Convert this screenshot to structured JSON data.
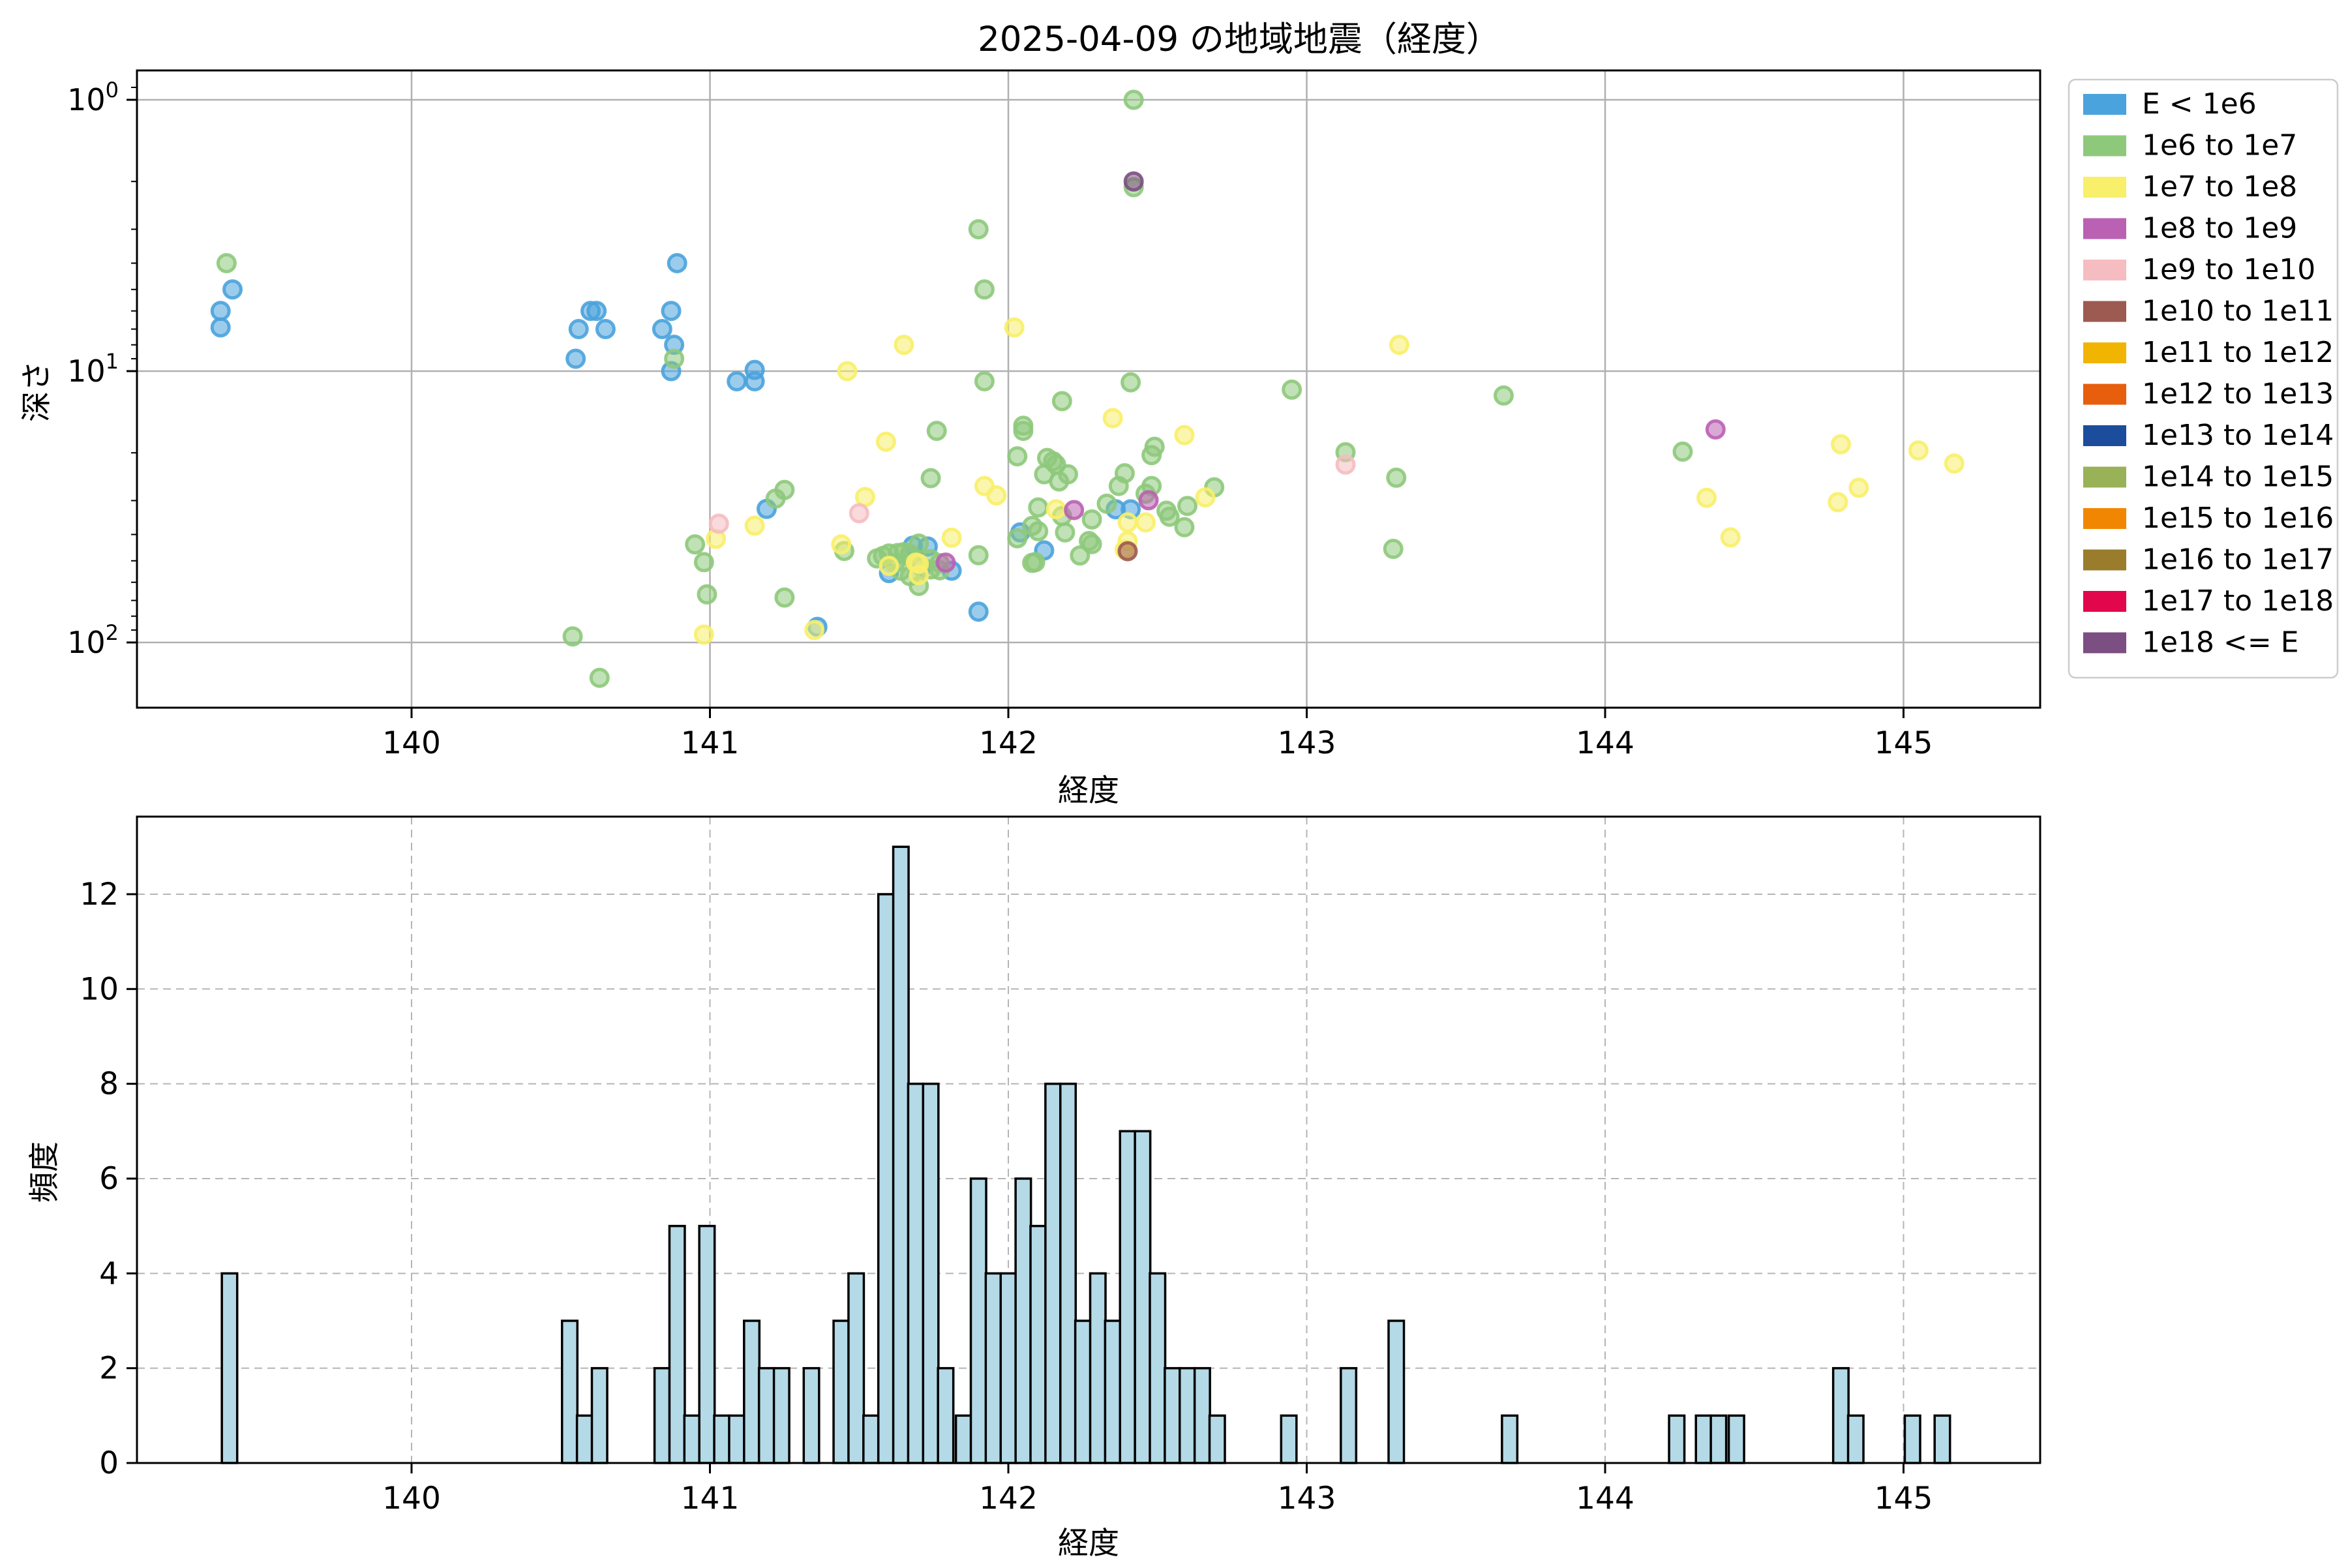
{
  "figure": {
    "title": "2025-04-09 の地域地震（経度）",
    "background": "#ffffff"
  },
  "chart_data": [
    {
      "type": "scatter",
      "title": "2025-04-09 の地域地震（経度）",
      "xlabel": "経度",
      "ylabel": "深さ",
      "x_axis": {
        "min": 139.08,
        "max": 145.46,
        "ticks": [
          140,
          141,
          142,
          143,
          144,
          145
        ]
      },
      "y_axis": {
        "scale": "log",
        "inverted": true,
        "min_value": 0.81,
        "max_value": 175,
        "ticks": [
          {
            "value": 1,
            "base": "10",
            "exp": "0"
          },
          {
            "value": 10,
            "base": "10",
            "exp": "1"
          },
          {
            "value": 100,
            "base": "10",
            "exp": "2"
          }
        ]
      },
      "grid": {
        "style": "solid",
        "color": "#b0b0b0"
      },
      "legend_position": "upper right outside",
      "series": [
        {
          "name": "E < 1e6",
          "color": "#4aa3dc",
          "points": [
            [
              139.4,
              5.0
            ],
            [
              139.36,
              6.0
            ],
            [
              139.36,
              6.9
            ],
            [
              140.55,
              9.0
            ],
            [
              140.56,
              7.0
            ],
            [
              140.62,
              6.0
            ],
            [
              140.65,
              7.0
            ],
            [
              140.6,
              6.0
            ],
            [
              140.84,
              7.0
            ],
            [
              140.87,
              6.0
            ],
            [
              140.88,
              8.0
            ],
            [
              140.87,
              10.0
            ],
            [
              140.89,
              4.0
            ],
            [
              141.09,
              10.9
            ],
            [
              141.15,
              10.9
            ],
            [
              141.15,
              9.9
            ],
            [
              141.19,
              32.2
            ],
            [
              141.36,
              87.6
            ],
            [
              141.6,
              55.5
            ],
            [
              141.67,
              47.5
            ],
            [
              141.68,
              44.0
            ],
            [
              141.71,
              52.8
            ],
            [
              141.73,
              44.3
            ],
            [
              141.81,
              54.4
            ],
            [
              141.9,
              77.0
            ],
            [
              142.04,
              39.3
            ],
            [
              142.12,
              45.8
            ],
            [
              142.36,
              32.3
            ],
            [
              142.41,
              32.3
            ]
          ]
        },
        {
          "name": "1e6 to 1e7",
          "color": "#8ec97b",
          "points": [
            [
              139.38,
              4.0
            ],
            [
              140.54,
              95.0
            ],
            [
              140.63,
              135.0
            ],
            [
              140.88,
              9.0
            ],
            [
              140.95,
              43.5
            ],
            [
              140.98,
              50.6
            ],
            [
              140.99,
              66.5
            ],
            [
              141.22,
              29.5
            ],
            [
              141.25,
              27.4
            ],
            [
              141.25,
              68.3
            ],
            [
              141.45,
              46.0
            ],
            [
              141.56,
              49.0
            ],
            [
              141.58,
              48.0
            ],
            [
              141.6,
              47.0
            ],
            [
              141.62,
              51.0
            ],
            [
              141.63,
              46.8
            ],
            [
              141.64,
              54.4
            ],
            [
              141.65,
              46.5
            ],
            [
              141.67,
              47.3
            ],
            [
              141.67,
              56.9
            ],
            [
              141.7,
              43.2
            ],
            [
              141.7,
              61.9
            ],
            [
              141.74,
              49.3
            ],
            [
              141.74,
              53.8
            ],
            [
              141.74,
              24.8
            ],
            [
              141.76,
              16.6
            ],
            [
              141.77,
              51.0
            ],
            [
              141.77,
              54.2
            ],
            [
              141.9,
              3.0
            ],
            [
              141.92,
              5.0
            ],
            [
              141.9,
              47.7
            ],
            [
              141.92,
              10.9
            ],
            [
              142.03,
              41.3
            ],
            [
              142.03,
              20.6
            ],
            [
              142.05,
              15.9
            ],
            [
              142.05,
              16.6
            ],
            [
              142.08,
              50.9
            ],
            [
              142.08,
              37.2
            ],
            [
              142.09,
              50.6
            ],
            [
              142.1,
              31.8
            ],
            [
              142.1,
              38.9
            ],
            [
              142.12,
              24.0
            ],
            [
              142.13,
              20.9
            ],
            [
              142.15,
              21.5
            ],
            [
              142.16,
              22.1
            ],
            [
              142.17,
              25.5
            ],
            [
              142.18,
              12.9
            ],
            [
              142.18,
              34.2
            ],
            [
              142.19,
              39.3
            ],
            [
              142.2,
              24.0
            ],
            [
              142.24,
              47.8
            ],
            [
              142.27,
              42.3
            ],
            [
              142.28,
              35.2
            ],
            [
              142.28,
              43.4
            ],
            [
              142.33,
              30.8
            ],
            [
              142.37,
              26.5
            ],
            [
              142.39,
              23.8
            ],
            [
              142.41,
              11.0
            ],
            [
              142.42,
              1.0
            ],
            [
              142.42,
              2.1
            ],
            [
              142.46,
              28.3
            ],
            [
              142.48,
              26.5
            ],
            [
              142.48,
              20.4
            ],
            [
              142.49,
              19.0
            ],
            [
              142.53,
              32.7
            ],
            [
              142.54,
              34.4
            ],
            [
              142.59,
              37.6
            ],
            [
              142.6,
              31.4
            ],
            [
              142.69,
              26.8
            ],
            [
              142.95,
              11.7
            ],
            [
              143.13,
              19.9
            ],
            [
              143.29,
              45.2
            ],
            [
              143.3,
              24.7
            ],
            [
              143.66,
              12.3
            ],
            [
              144.26,
              19.8
            ]
          ]
        },
        {
          "name": "1e7 to 1e8",
          "color": "#f8ef6a",
          "points": [
            [
              140.98,
              93.5
            ],
            [
              141.02,
              41.5
            ],
            [
              141.15,
              37.1
            ],
            [
              141.35,
              90.0
            ],
            [
              141.44,
              43.5
            ],
            [
              141.46,
              10.0
            ],
            [
              141.52,
              29.1
            ],
            [
              141.59,
              18.2
            ],
            [
              141.6,
              52.2
            ],
            [
              141.65,
              8.0
            ],
            [
              141.69,
              50.8
            ],
            [
              141.7,
              51.3
            ],
            [
              141.7,
              56.5
            ],
            [
              141.81,
              41.1
            ],
            [
              141.92,
              26.5
            ],
            [
              141.96,
              28.7
            ],
            [
              142.02,
              6.9
            ],
            [
              142.16,
              32.3
            ],
            [
              142.35,
              14.9
            ],
            [
              142.39,
              45.5
            ],
            [
              142.4,
              36.1
            ],
            [
              142.4,
              42.3
            ],
            [
              142.46,
              36.1
            ],
            [
              142.59,
              17.2
            ],
            [
              142.66,
              29.2
            ],
            [
              143.31,
              8.0
            ],
            [
              144.34,
              29.3
            ],
            [
              144.42,
              41.0
            ],
            [
              144.79,
              18.6
            ],
            [
              144.78,
              30.4
            ],
            [
              144.85,
              26.9
            ],
            [
              145.05,
              19.6
            ],
            [
              145.17,
              21.9
            ]
          ]
        },
        {
          "name": "1e8 to 1e9",
          "color": "#bb61b3",
          "points": [
            [
              141.79,
              50.8
            ],
            [
              142.22,
              32.5
            ],
            [
              142.47,
              29.9
            ],
            [
              144.37,
              16.4
            ]
          ]
        },
        {
          "name": "1e9 to 1e10",
          "color": "#f5bdc1",
          "points": [
            [
              141.03,
              36.5
            ],
            [
              141.5,
              33.4
            ],
            [
              143.13,
              22.1
            ]
          ]
        },
        {
          "name": "1e10 to 1e11",
          "color": "#9d5a51",
          "points": [
            [
              142.4,
              46.1
            ]
          ]
        },
        {
          "name": "1e11 to 1e12",
          "color": "#f1b501",
          "points": []
        },
        {
          "name": "1e12 to 1e13",
          "color": "#e75e0d",
          "points": []
        },
        {
          "name": "1e13 to 1e14",
          "color": "#1c4d9c",
          "points": []
        },
        {
          "name": "1e14 to 1e15",
          "color": "#99b157",
          "points": []
        },
        {
          "name": "1e15 to 1e16",
          "color": "#f18603",
          "points": []
        },
        {
          "name": "1e16 to 1e17",
          "color": "#997c2c",
          "points": []
        },
        {
          "name": "1e17 to 1e18",
          "color": "#e2074c",
          "points": []
        },
        {
          "name": "1e18 <= E",
          "color": "#7b4f82",
          "points": [
            [
              142.42,
              2.0
            ]
          ]
        }
      ]
    },
    {
      "type": "bar",
      "xlabel": "経度",
      "ylabel": "頻度",
      "x_axis": {
        "min": 139.08,
        "max": 145.46,
        "ticks": [
          140,
          141,
          142,
          143,
          144,
          145
        ]
      },
      "y_axis": {
        "min": 0,
        "max": 13.6,
        "ticks": [
          0,
          2,
          4,
          6,
          8,
          10,
          12
        ]
      },
      "grid": {
        "style": "dashed",
        "color": "#b5b5b5"
      },
      "bin_width": 0.0514,
      "bar_fill": "#b4d9e7",
      "bar_edge": "#000000",
      "bars": [
        {
          "x": 139.39,
          "h": 4
        },
        {
          "x": 140.53,
          "h": 3
        },
        {
          "x": 140.58,
          "h": 1
        },
        {
          "x": 140.63,
          "h": 2
        },
        {
          "x": 140.84,
          "h": 2
        },
        {
          "x": 140.89,
          "h": 5
        },
        {
          "x": 140.94,
          "h": 1
        },
        {
          "x": 140.99,
          "h": 5
        },
        {
          "x": 141.04,
          "h": 1
        },
        {
          "x": 141.09,
          "h": 1
        },
        {
          "x": 141.14,
          "h": 3
        },
        {
          "x": 141.19,
          "h": 2
        },
        {
          "x": 141.24,
          "h": 2
        },
        {
          "x": 141.34,
          "h": 2
        },
        {
          "x": 141.44,
          "h": 3
        },
        {
          "x": 141.49,
          "h": 4
        },
        {
          "x": 141.54,
          "h": 1
        },
        {
          "x": 141.59,
          "h": 12
        },
        {
          "x": 141.64,
          "h": 13
        },
        {
          "x": 141.69,
          "h": 8
        },
        {
          "x": 141.74,
          "h": 8
        },
        {
          "x": 141.79,
          "h": 2
        },
        {
          "x": 141.85,
          "h": 1
        },
        {
          "x": 141.9,
          "h": 6
        },
        {
          "x": 141.95,
          "h": 4
        },
        {
          "x": 142.0,
          "h": 4
        },
        {
          "x": 142.05,
          "h": 6
        },
        {
          "x": 142.1,
          "h": 5
        },
        {
          "x": 142.15,
          "h": 8
        },
        {
          "x": 142.2,
          "h": 8
        },
        {
          "x": 142.25,
          "h": 3
        },
        {
          "x": 142.3,
          "h": 4
        },
        {
          "x": 142.35,
          "h": 3
        },
        {
          "x": 142.4,
          "h": 7
        },
        {
          "x": 142.45,
          "h": 7
        },
        {
          "x": 142.5,
          "h": 4
        },
        {
          "x": 142.55,
          "h": 2
        },
        {
          "x": 142.6,
          "h": 2
        },
        {
          "x": 142.65,
          "h": 2
        },
        {
          "x": 142.7,
          "h": 1
        },
        {
          "x": 142.94,
          "h": 1
        },
        {
          "x": 143.14,
          "h": 2
        },
        {
          "x": 143.3,
          "h": 3
        },
        {
          "x": 143.68,
          "h": 1
        },
        {
          "x": 144.24,
          "h": 1
        },
        {
          "x": 144.33,
          "h": 1
        },
        {
          "x": 144.38,
          "h": 1
        },
        {
          "x": 144.44,
          "h": 1
        },
        {
          "x": 144.79,
          "h": 2
        },
        {
          "x": 144.84,
          "h": 1
        },
        {
          "x": 145.03,
          "h": 1
        },
        {
          "x": 145.13,
          "h": 1
        }
      ]
    }
  ]
}
